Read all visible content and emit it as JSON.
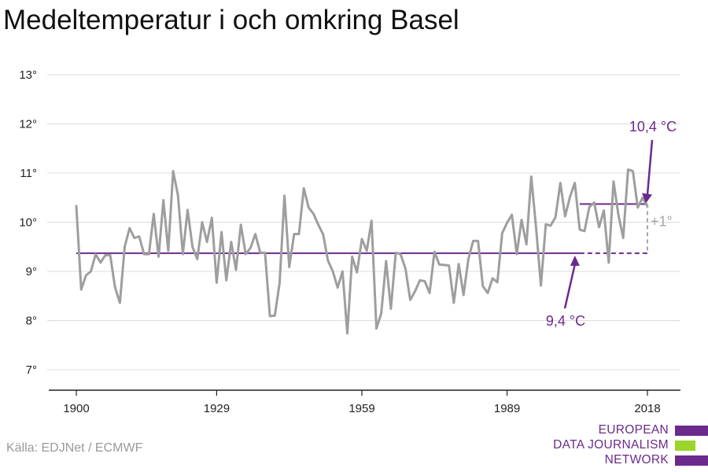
{
  "title": "Medeltemperatur i och omkring Basel",
  "source": "Källa: EDJNet / ECMWF",
  "logo": {
    "lines": [
      "EUROPEAN",
      "DATA JOURNALISM",
      "NETWORK"
    ],
    "colors": [
      "#6b2a8c",
      "#9bd42a",
      "#6b2a8c"
    ]
  },
  "colors": {
    "series": "#9e9e9e",
    "accent": "#6b2a8c",
    "grid": "#dddddd",
    "axis": "#222222",
    "delta": "#a7a7a7"
  },
  "chart_data": {
    "type": "line",
    "title": "Medeltemperatur i och omkring Basel",
    "xlabel": "",
    "ylabel": "",
    "x_ticks": [
      1900,
      1929,
      1959,
      1989,
      2018
    ],
    "y_ticks": [
      7,
      8,
      9,
      10,
      11,
      12,
      13
    ],
    "y_tick_labels": [
      "7°",
      "8°",
      "9°",
      "10°",
      "11°",
      "12°",
      "13°"
    ],
    "xlim": [
      1896,
      2020
    ],
    "ylim": [
      6.6,
      13.2
    ],
    "grid": "horizontal",
    "series": [
      {
        "x": [
          1900,
          1901,
          1902,
          1903,
          1904,
          1905,
          1906,
          1907,
          1908,
          1909,
          1910,
          1911,
          1912,
          1913,
          1914,
          1915,
          1916,
          1917,
          1918,
          1919,
          1920,
          1921,
          1922,
          1923,
          1924,
          1925,
          1926,
          1927,
          1928,
          1929,
          1930,
          1931,
          1932,
          1933,
          1934,
          1935,
          1936,
          1937,
          1938,
          1939,
          1940,
          1941,
          1942,
          1943,
          1944,
          1945,
          1946,
          1947,
          1948,
          1949,
          1950,
          1951,
          1952,
          1953,
          1954,
          1955,
          1956,
          1957,
          1958,
          1959,
          1960,
          1961,
          1962,
          1963,
          1964,
          1965,
          1966,
          1967,
          1968,
          1969,
          1970,
          1971,
          1972,
          1973,
          1974,
          1975,
          1976,
          1977,
          1978,
          1979,
          1980,
          1981,
          1982,
          1983,
          1984,
          1985,
          1986,
          1987,
          1988,
          1989,
          1990,
          1991,
          1992,
          1993,
          1994,
          1995,
          1996,
          1997,
          1998,
          1999,
          2000,
          2001,
          2002,
          2003,
          2004,
          2005,
          2006,
          2007,
          2008,
          2009,
          2010,
          2011,
          2012,
          2013,
          2014,
          2015,
          2016,
          2017,
          2018
        ],
        "values": [
          10.33,
          8.63,
          8.92,
          9.0,
          9.35,
          9.18,
          9.33,
          9.33,
          8.68,
          8.36,
          9.5,
          9.88,
          9.68,
          9.71,
          9.35,
          9.35,
          10.17,
          9.3,
          10.45,
          9.42,
          11.04,
          10.55,
          9.35,
          10.25,
          9.5,
          9.25,
          10.0,
          9.6,
          10.09,
          8.77,
          9.8,
          8.82,
          9.6,
          9.03,
          9.95,
          9.35,
          9.48,
          9.76,
          9.38,
          9.38,
          8.09,
          8.1,
          8.76,
          10.54,
          9.09,
          9.76,
          9.76,
          10.69,
          10.3,
          10.17,
          9.95,
          9.75,
          9.22,
          9.0,
          8.67,
          9.0,
          7.74,
          9.3,
          8.98,
          9.66,
          9.42,
          10.03,
          7.84,
          8.14,
          9.21,
          8.24,
          9.38,
          9.35,
          9.06,
          8.42,
          8.6,
          8.82,
          8.8,
          8.56,
          9.4,
          9.14,
          9.13,
          9.12,
          8.36,
          9.15,
          8.52,
          9.25,
          9.62,
          9.62,
          8.7,
          8.56,
          8.86,
          8.78,
          9.78,
          9.99,
          10.15,
          9.35,
          10.05,
          9.55,
          10.93,
          9.88,
          8.71,
          9.96,
          9.93,
          10.1,
          10.8,
          10.12,
          10.52,
          10.8,
          9.85,
          9.82,
          10.31,
          10.4,
          9.9,
          10.24,
          9.18,
          10.83,
          10.15,
          9.68,
          11.07,
          11.04,
          10.3,
          10.5,
          10.32
        ]
      }
    ],
    "reference_lines": [
      {
        "label": "9,4 °C",
        "value": 9.37,
        "from": 1900,
        "to": 2004,
        "dashed_to": 2018
      },
      {
        "label": "10,4 °C",
        "value": 10.37,
        "from": 2004,
        "to": 2018
      }
    ],
    "annotations": [
      "+1°"
    ]
  }
}
